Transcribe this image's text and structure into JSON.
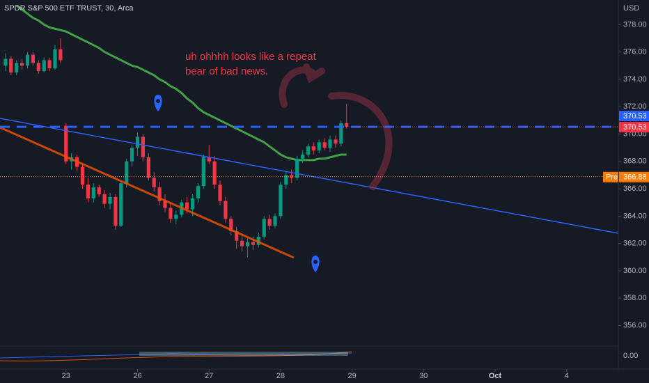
{
  "chart_data": {
    "type": "candlestick",
    "title": "SPDR S&P 500 ETF TRUST, 30, Arca",
    "currency": "USD",
    "annotation": [
      "uh ohhhh looks like a repeat",
      "bear of bad news."
    ],
    "up_color": "#089981",
    "down_color": "#f23645",
    "ylim": [
      354.6,
      379.8
    ],
    "yticks": [
      {
        "value": 356,
        "label": "356.00"
      },
      {
        "value": 358,
        "label": "358.00"
      },
      {
        "value": 360,
        "label": "360.00"
      },
      {
        "value": 362,
        "label": "362.00"
      },
      {
        "value": 364,
        "label": "364.00"
      },
      {
        "value": 366,
        "label": "366.00"
      },
      {
        "value": 368,
        "label": "368.00"
      },
      {
        "value": 370,
        "label": "370.00"
      },
      {
        "value": 372,
        "label": "372.00"
      },
      {
        "value": 374,
        "label": "374.00"
      },
      {
        "value": 376,
        "label": "376.00"
      },
      {
        "value": 378,
        "label": "378.00"
      }
    ],
    "xlim": [
      -1,
      111.4
    ],
    "xticks": [
      {
        "value": 11,
        "label": "23"
      },
      {
        "value": 24,
        "label": "26"
      },
      {
        "value": 37,
        "label": "27"
      },
      {
        "value": 50,
        "label": "28"
      },
      {
        "value": 63,
        "label": "29"
      },
      {
        "value": 76,
        "label": "30"
      },
      {
        "value": 89,
        "label": "Oct"
      },
      {
        "value": 102,
        "label": "4"
      }
    ],
    "candles": [
      [
        375.0,
        375.9,
        374.6,
        375.5
      ],
      [
        375.5,
        375.7,
        374.3,
        374.5
      ],
      [
        374.5,
        375.4,
        374.3,
        375.2
      ],
      [
        375.2,
        375.5,
        374.7,
        375.0
      ],
      [
        375.0,
        376.0,
        374.8,
        375.8
      ],
      [
        375.8,
        376.0,
        375.0,
        375.2
      ],
      [
        375.2,
        375.4,
        374.4,
        374.6
      ],
      [
        374.6,
        375.6,
        374.5,
        375.4
      ],
      [
        375.4,
        375.6,
        374.6,
        374.8
      ],
      [
        374.8,
        376.5,
        374.7,
        376.2
      ],
      [
        376.2,
        377.0,
        375.2,
        375.4
      ],
      [
        370.6,
        370.8,
        367.8,
        368.0
      ],
      [
        368.0,
        368.6,
        367.4,
        368.3
      ],
      [
        368.3,
        368.5,
        367.3,
        367.6
      ],
      [
        367.6,
        367.9,
        366.0,
        366.3
      ],
      [
        366.3,
        366.8,
        365.0,
        365.3
      ],
      [
        365.3,
        366.4,
        365.0,
        366.1
      ],
      [
        366.1,
        366.3,
        365.4,
        365.6
      ],
      [
        365.6,
        365.9,
        364.6,
        364.9
      ],
      [
        364.9,
        365.7,
        364.5,
        365.4
      ],
      [
        365.4,
        365.6,
        363.0,
        363.3
      ],
      [
        363.3,
        366.6,
        363.2,
        366.4
      ],
      [
        366.4,
        368.2,
        366.1,
        368.0
      ],
      [
        368.0,
        369.2,
        367.6,
        369.0
      ],
      [
        369.0,
        370.1,
        368.4,
        369.8
      ],
      [
        369.8,
        370.0,
        368.0,
        368.3
      ],
      [
        368.3,
        368.6,
        366.6,
        366.8
      ],
      [
        366.8,
        367.2,
        365.8,
        366.1
      ],
      [
        366.1,
        366.5,
        364.8,
        365.1
      ],
      [
        365.1,
        365.6,
        364.3,
        364.6
      ],
      [
        364.6,
        365.0,
        363.5,
        363.8
      ],
      [
        363.8,
        364.4,
        363.4,
        364.1
      ],
      [
        364.1,
        365.2,
        363.9,
        365.0
      ],
      [
        365.0,
        365.4,
        364.2,
        364.5
      ],
      [
        364.5,
        365.6,
        364.0,
        365.3
      ],
      [
        365.3,
        366.4,
        365.0,
        366.2
      ],
      [
        366.2,
        368.5,
        366.0,
        368.3
      ],
      [
        368.3,
        369.2,
        367.8,
        368.0
      ],
      [
        368.0,
        368.4,
        366.0,
        366.3
      ],
      [
        366.3,
        366.6,
        364.8,
        365.1
      ],
      [
        365.1,
        365.4,
        363.5,
        363.8
      ],
      [
        363.8,
        364.0,
        362.6,
        362.9
      ],
      [
        362.9,
        363.2,
        361.6,
        362.2
      ],
      [
        362.2,
        362.6,
        361.4,
        361.8
      ],
      [
        361.8,
        362.4,
        361.0,
        362.1
      ],
      [
        362.1,
        362.5,
        361.5,
        361.9
      ],
      [
        361.9,
        362.8,
        361.7,
        362.5
      ],
      [
        362.5,
        364.0,
        362.3,
        363.8
      ],
      [
        363.8,
        364.1,
        363.0,
        363.3
      ],
      [
        363.3,
        364.2,
        363.1,
        364.0
      ],
      [
        364.0,
        366.5,
        363.8,
        366.3
      ],
      [
        366.3,
        367.3,
        366.0,
        367.0
      ],
      [
        367.0,
        367.4,
        366.4,
        366.8
      ],
      [
        366.8,
        368.4,
        366.6,
        368.2
      ],
      [
        368.2,
        368.8,
        367.9,
        368.5
      ],
      [
        368.5,
        369.3,
        368.3,
        369.1
      ],
      [
        369.1,
        369.4,
        368.5,
        368.8
      ],
      [
        368.8,
        369.6,
        368.6,
        369.4
      ],
      [
        369.4,
        369.7,
        368.8,
        369.0
      ],
      [
        369.0,
        369.9,
        368.7,
        369.6
      ],
      [
        369.6,
        369.9,
        369.0,
        369.3
      ],
      [
        369.3,
        371.0,
        369.1,
        370.8
      ],
      [
        370.8,
        372.2,
        370.4,
        370.53
      ]
    ],
    "ma": {
      "color": "#43a047",
      "values": [
        null,
        null,
        379.4,
        379.1,
        378.8,
        378.5,
        378.3,
        378.0,
        377.8,
        377.7,
        377.6,
        377.5,
        377.3,
        377.1,
        376.9,
        376.7,
        376.5,
        376.3,
        376.0,
        375.8,
        375.6,
        375.4,
        375.2,
        375.0,
        374.9,
        374.7,
        374.5,
        374.3,
        374.0,
        373.8,
        373.5,
        373.3,
        373.0,
        372.6,
        372.3,
        371.9,
        371.6,
        371.4,
        371.2,
        371.0,
        370.8,
        370.6,
        370.4,
        370.2,
        370.0,
        369.8,
        369.6,
        369.4,
        369.1,
        368.8,
        368.5,
        368.3,
        368.2,
        368.1,
        368.1,
        368.1,
        368.1,
        368.2,
        368.2,
        368.3,
        368.4,
        368.5,
        368.5
      ]
    },
    "last_price": 370.53,
    "premarket_label": "Pre",
    "premarket_price": 366.88,
    "lower_pane_tick": {
      "value": 0,
      "label": "0.00"
    }
  }
}
